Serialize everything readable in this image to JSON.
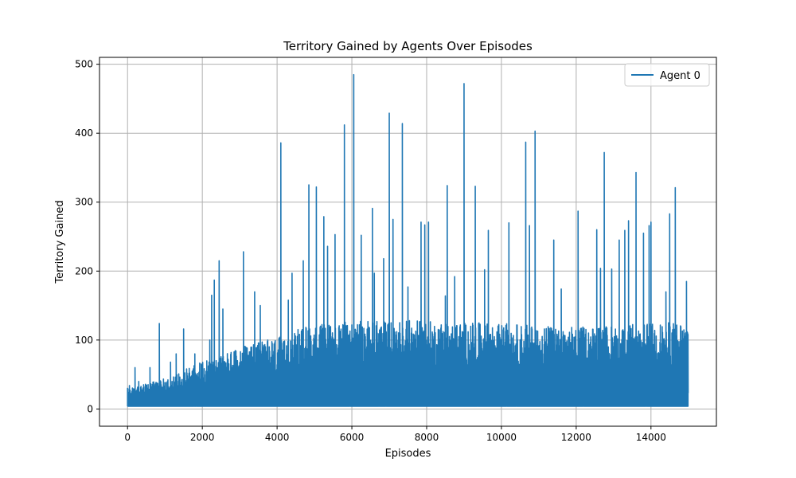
{
  "chart_data": {
    "type": "line",
    "title": "Territory Gained by Agents Over Episodes",
    "xlabel": "Episodes",
    "ylabel": "Territory Gained",
    "xlim": [
      -750,
      15750
    ],
    "ylim": [
      -25,
      510
    ],
    "x_ticks": [
      0,
      2000,
      4000,
      6000,
      8000,
      10000,
      12000,
      14000
    ],
    "y_ticks": [
      0,
      100,
      200,
      300,
      400,
      500
    ],
    "grid": true,
    "legend_position": "upper right",
    "series": [
      {
        "name": "Agent 0",
        "color": "#1f77b4",
        "n_points": 15000,
        "baseline": 4,
        "peaks": [
          [
            0,
            30
          ],
          [
            50,
            34
          ],
          [
            200,
            60
          ],
          [
            300,
            40
          ],
          [
            600,
            60
          ],
          [
            850,
            124
          ],
          [
            1150,
            68
          ],
          [
            1300,
            80
          ],
          [
            1500,
            116
          ],
          [
            1800,
            80
          ],
          [
            2200,
            100
          ],
          [
            2250,
            165
          ],
          [
            2320,
            187
          ],
          [
            2450,
            215
          ],
          [
            2550,
            145
          ],
          [
            3100,
            228
          ],
          [
            3400,
            170
          ],
          [
            3550,
            150
          ],
          [
            4100,
            386
          ],
          [
            4300,
            158
          ],
          [
            4400,
            197
          ],
          [
            4700,
            215
          ],
          [
            4850,
            325
          ],
          [
            5050,
            322
          ],
          [
            5250,
            279
          ],
          [
            5350,
            236
          ],
          [
            5550,
            253
          ],
          [
            5800,
            412
          ],
          [
            6050,
            485
          ],
          [
            6250,
            252
          ],
          [
            6550,
            291
          ],
          [
            6600,
            197
          ],
          [
            6850,
            218
          ],
          [
            7000,
            429
          ],
          [
            7100,
            275
          ],
          [
            7350,
            414
          ],
          [
            7500,
            177
          ],
          [
            7850,
            271
          ],
          [
            7950,
            267
          ],
          [
            8050,
            271
          ],
          [
            8500,
            164
          ],
          [
            8550,
            324
          ],
          [
            8750,
            192
          ],
          [
            9000,
            472
          ],
          [
            9300,
            323
          ],
          [
            9550,
            202
          ],
          [
            9650,
            259
          ],
          [
            10200,
            270
          ],
          [
            10650,
            387
          ],
          [
            10750,
            266
          ],
          [
            10900,
            403
          ],
          [
            11400,
            245
          ],
          [
            11600,
            174
          ],
          [
            12050,
            287
          ],
          [
            12550,
            260
          ],
          [
            12650,
            204
          ],
          [
            12750,
            372
          ],
          [
            12950,
            203
          ],
          [
            13150,
            245
          ],
          [
            13300,
            259
          ],
          [
            13400,
            273
          ],
          [
            13600,
            343
          ],
          [
            13800,
            255
          ],
          [
            13950,
            266
          ],
          [
            14000,
            271
          ],
          [
            14400,
            170
          ],
          [
            14500,
            283
          ],
          [
            14650,
            321
          ],
          [
            14950,
            185
          ]
        ],
        "envelope": [
          [
            0,
            25
          ],
          [
            1000,
            40
          ],
          [
            2000,
            65
          ],
          [
            3000,
            85
          ],
          [
            4000,
            100
          ],
          [
            5000,
            120
          ],
          [
            7000,
            125
          ],
          [
            10000,
            120
          ],
          [
            12000,
            115
          ],
          [
            14000,
            120
          ],
          [
            15000,
            125
          ]
        ]
      }
    ]
  }
}
